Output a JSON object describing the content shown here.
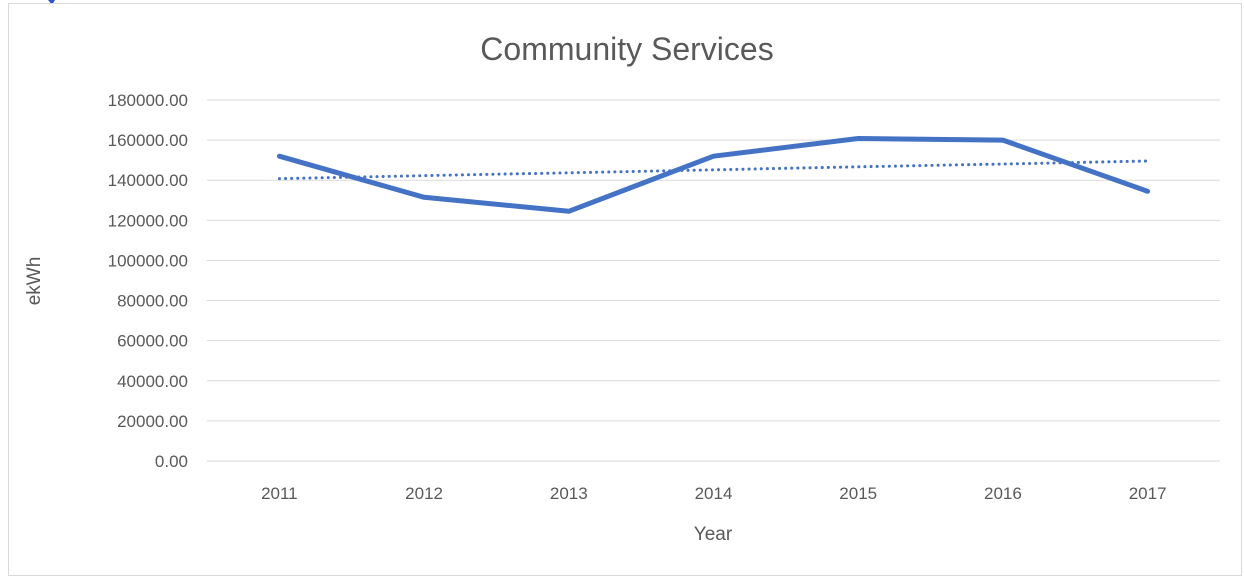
{
  "chart_data": {
    "type": "line",
    "title": "Community Services",
    "xlabel": "Year",
    "ylabel": "ekWh",
    "categories": [
      "2011",
      "2012",
      "2013",
      "2014",
      "2015",
      "2016",
      "2017"
    ],
    "ylim": [
      0,
      180000
    ],
    "y_ticks": [
      "0.00",
      "20000.00",
      "40000.00",
      "60000.00",
      "80000.00",
      "100000.00",
      "120000.00",
      "140000.00",
      "160000.00",
      "180000.00"
    ],
    "y_tick_values": [
      0,
      20000,
      40000,
      60000,
      80000,
      100000,
      120000,
      140000,
      160000,
      180000
    ],
    "grid": true,
    "legend": "none",
    "series": [
      {
        "values": [
          152000,
          131500,
          124500,
          152000,
          160800,
          160000,
          134500
        ],
        "color": "#4472c4",
        "style": "solid"
      },
      {
        "values": [
          140800,
          142300,
          143700,
          145200,
          146700,
          148100,
          149600
        ],
        "color": "#4472c4",
        "style": "dotted",
        "kind": "linear trendline"
      }
    ]
  },
  "colors": {
    "series": "#4472c4",
    "grid": "#d9d9d9",
    "text": "#595959",
    "fragment": "#2f55c8"
  }
}
